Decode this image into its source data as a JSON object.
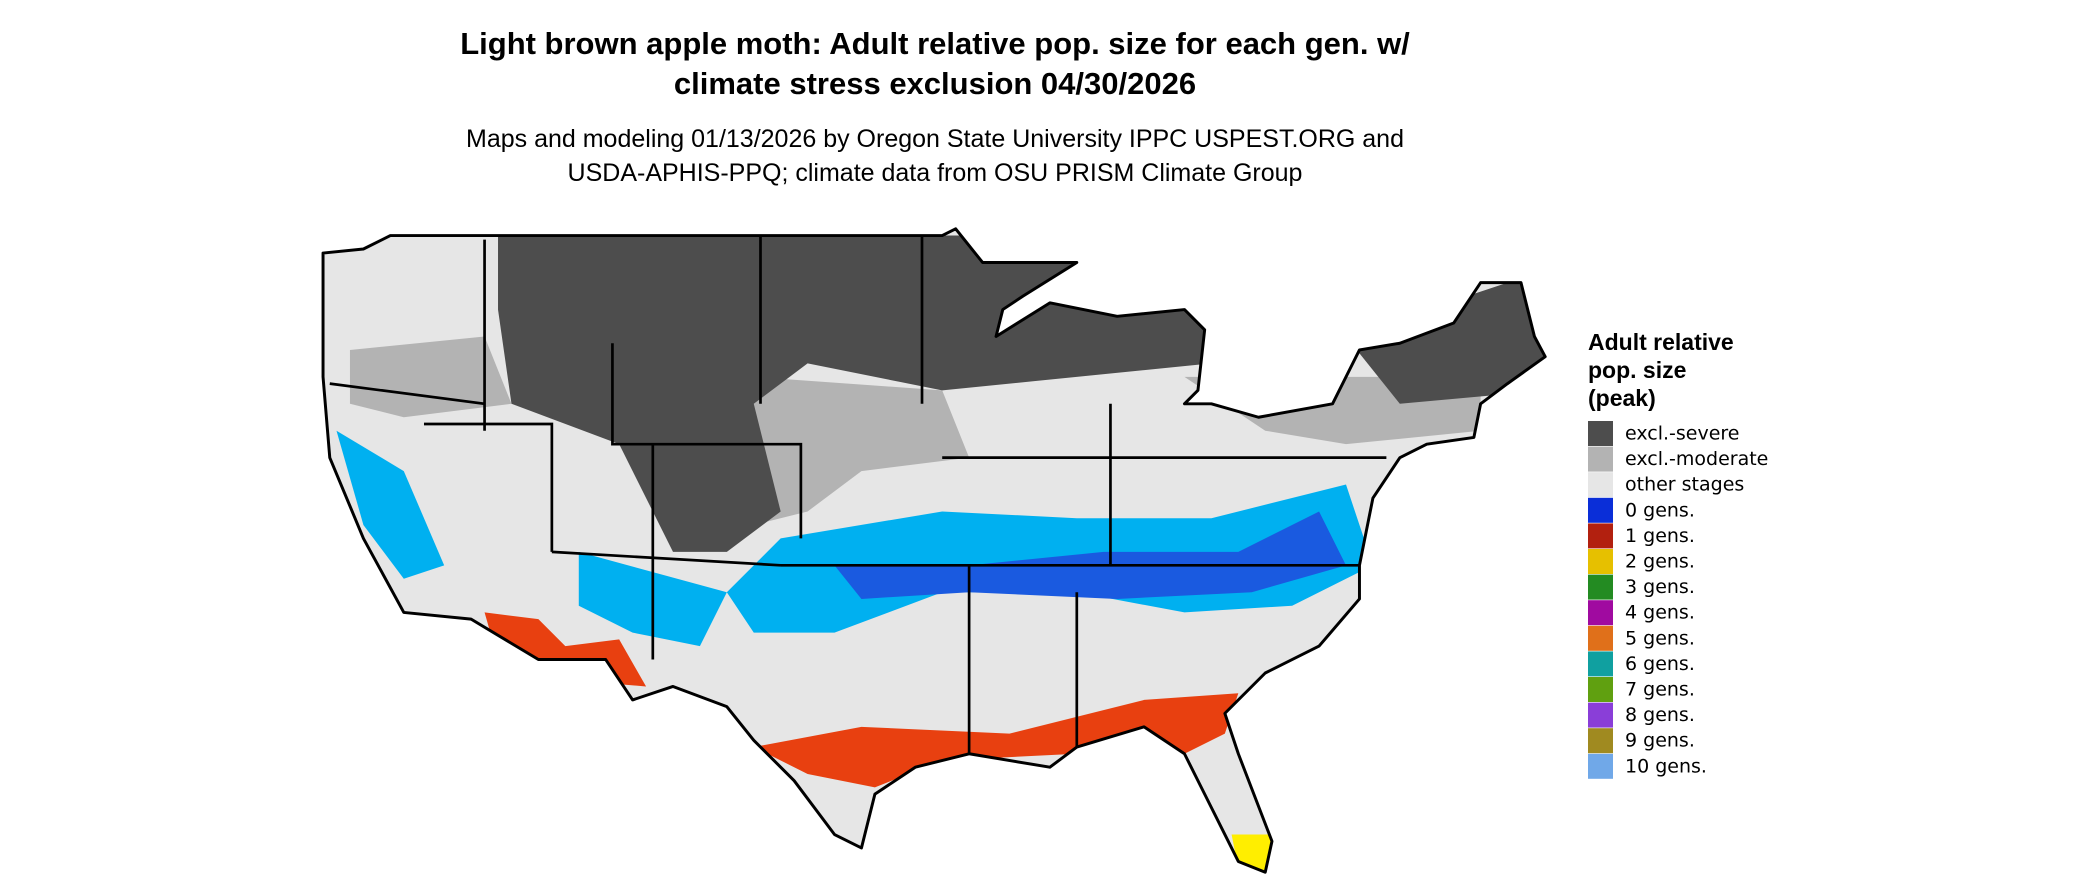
{
  "header": {
    "title_lines": [
      "Light brown apple moth: Adult relative pop. size for each gen. w/",
      "climate stress exclusion 04/30/2026"
    ],
    "subtitle_lines": [
      "Maps and modeling 01/13/2026 by Oregon State University IPPC USPEST.ORG and",
      "USDA-APHIS-PPQ; climate data from OSU PRISM Climate Group"
    ]
  },
  "legend": {
    "title_lines": [
      "Adult relative",
      "pop. size",
      "(peak)"
    ],
    "items": [
      {
        "label": "excl.-severe",
        "color": "#4d4d4d"
      },
      {
        "label": "excl.-moderate",
        "color": "#b3b3b3"
      },
      {
        "label": "other stages",
        "color": "#e6e6e6"
      },
      {
        "label": "0 gens.",
        "color": "#0a2ed8"
      },
      {
        "label": "1 gens.",
        "color": "#b2200f"
      },
      {
        "label": "2 gens.",
        "color": "#e6c000"
      },
      {
        "label": "3 gens.",
        "color": "#238b22"
      },
      {
        "label": "4 gens.",
        "color": "#a00aa0"
      },
      {
        "label": "5 gens.",
        "color": "#e0701a"
      },
      {
        "label": "6 gens.",
        "color": "#10a0a0"
      },
      {
        "label": "7 gens.",
        "color": "#60a010"
      },
      {
        "label": "8 gens.",
        "color": "#8a3ed8"
      },
      {
        "label": "9 gens.",
        "color": "#a08a20"
      },
      {
        "label": "10 gens.",
        "color": "#70a8e8"
      }
    ]
  }
}
